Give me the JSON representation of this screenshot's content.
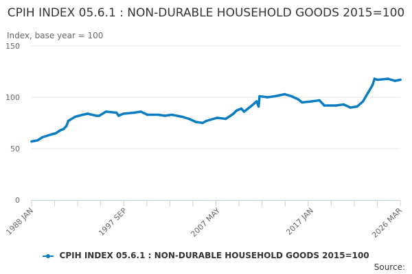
{
  "chart_data": {
    "type": "line",
    "title": "CPIH INDEX 05.6.1 : NON-DURABLE HOUSEHOLD GOODS 2015=100",
    "ylabel": "Index, base year = 100",
    "xlabel": "",
    "ylim": [
      0,
      150
    ],
    "xlim": [
      1988.0,
      2026.17
    ],
    "yticks": [
      0,
      50,
      100,
      150
    ],
    "ytick_labels": [
      "0",
      "50",
      "100",
      "150"
    ],
    "xtick_labels": [
      {
        "label": "1988 JAN",
        "x": 1988.0
      },
      {
        "label": "1997 SEP",
        "x": 1997.67
      },
      {
        "label": "2007 MAY",
        "x": 2007.33
      },
      {
        "label": "2017 JAN",
        "x": 2017.0
      },
      {
        "label": "2026 MAR",
        "x": 2026.17
      }
    ],
    "grid": true,
    "legend_position": "bottom",
    "series": [
      {
        "name": "CPIH INDEX 05.6.1 : NON-DURABLE HOUSEHOLD GOODS 2015=100",
        "color": "#0a7cc2",
        "x": [
          1988.0,
          1988.6,
          1989.1,
          1990.1,
          1990.5,
          1991.0,
          1991.3,
          1991.6,
          1991.8,
          1992.5,
          1993.3,
          1993.8,
          1994.7,
          1995.0,
          1995.7,
          1996.8,
          1997.0,
          1997.5,
          1998.6,
          1999.3,
          2000.0,
          2001.1,
          2001.8,
          2002.5,
          2003.6,
          2004.3,
          2005.0,
          2005.7,
          2006.1,
          2007.2,
          2008.1,
          2008.9,
          2009.2,
          2009.7,
          2010.0,
          2010.8,
          2011.3,
          2011.5,
          2011.6,
          2012.4,
          2013.2,
          2014.2,
          2014.9,
          2015.6,
          2016.0,
          2017.0,
          2017.8,
          2018.3,
          2019.5,
          2020.3,
          2021.0,
          2021.7,
          2022.3,
          2022.8,
          2023.3,
          2023.5,
          2023.8,
          2024.9,
          2025.6,
          2026.17
        ],
        "values": [
          57,
          58,
          61,
          64,
          65,
          68,
          69,
          72,
          77,
          81,
          83,
          84,
          82,
          82,
          86,
          85,
          82,
          84,
          85,
          86,
          83,
          83,
          82,
          83,
          81,
          79,
          76,
          75,
          77,
          80,
          79,
          84,
          87,
          89,
          86,
          92,
          96,
          91,
          101,
          100,
          101,
          103,
          101,
          98,
          95,
          96,
          97,
          92,
          92,
          93,
          90,
          91,
          96,
          104,
          112,
          118,
          117,
          118,
          116,
          117
        ]
      }
    ]
  },
  "legend": {
    "label": "CPIH INDEX 05.6.1 : NON-DURABLE HOUSEHOLD GOODS 2015=100"
  },
  "source_label": "Source:"
}
